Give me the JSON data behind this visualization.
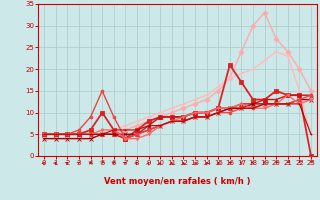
{
  "background_color": "#cce8e8",
  "grid_color": "#aacccc",
  "xlabel": "Vent moyen/en rafales ( km/h )",
  "xlabel_color": "#cc0000",
  "tick_color": "#cc0000",
  "arrow_color": "#cc0000",
  "xlim": [
    -0.5,
    23.5
  ],
  "ylim": [
    0,
    35
  ],
  "xticks": [
    0,
    1,
    2,
    3,
    4,
    5,
    6,
    7,
    8,
    9,
    10,
    11,
    12,
    13,
    14,
    15,
    16,
    17,
    18,
    19,
    20,
    21,
    22,
    23
  ],
  "yticks": [
    0,
    5,
    10,
    15,
    20,
    25,
    30,
    35
  ],
  "lines": [
    {
      "color": "#ffaaaa",
      "lw": 1.0,
      "marker": "D",
      "ms": 2.5,
      "x": [
        0,
        1,
        2,
        3,
        4,
        5,
        6,
        7,
        8,
        9,
        10,
        11,
        12,
        13,
        14,
        15,
        16,
        17,
        18,
        19,
        20,
        21,
        22,
        23
      ],
      "y": [
        5,
        5,
        5,
        5,
        5,
        5,
        5,
        6,
        7,
        8,
        9,
        10,
        11,
        12,
        13,
        15,
        18,
        24,
        30,
        33,
        27,
        24,
        20,
        15
      ]
    },
    {
      "color": "#ffbbbb",
      "lw": 1.0,
      "marker": "+",
      "ms": 3.5,
      "x": [
        0,
        1,
        2,
        3,
        4,
        5,
        6,
        7,
        8,
        9,
        10,
        11,
        12,
        13,
        14,
        15,
        16,
        17,
        18,
        19,
        20,
        21,
        22,
        23
      ],
      "y": [
        5,
        5,
        5,
        5,
        5,
        5,
        6,
        7,
        8,
        9,
        10,
        11,
        12,
        13,
        14,
        16,
        18,
        19,
        20,
        22,
        24,
        23,
        15,
        5
      ]
    },
    {
      "color": "#dd2222",
      "lw": 1.3,
      "marker": "s",
      "ms": 2.5,
      "x": [
        0,
        1,
        2,
        3,
        4,
        5,
        6,
        7,
        8,
        9,
        10,
        11,
        12,
        13,
        14,
        15,
        16,
        17,
        18,
        19,
        20,
        21,
        22,
        23
      ],
      "y": [
        5,
        5,
        5,
        5,
        6,
        10,
        6,
        4,
        6,
        8,
        9,
        9,
        9,
        10,
        10,
        11,
        21,
        17,
        13,
        13,
        15,
        14,
        14,
        0
      ]
    },
    {
      "color": "#cc1111",
      "lw": 1.0,
      "marker": "^",
      "ms": 2.5,
      "x": [
        0,
        1,
        2,
        3,
        4,
        5,
        6,
        7,
        8,
        9,
        10,
        11,
        12,
        13,
        14,
        15,
        16,
        17,
        18,
        19,
        20,
        21,
        22,
        23
      ],
      "y": [
        5,
        5,
        5,
        5,
        5,
        5,
        5,
        4,
        5,
        7,
        9,
        9,
        9,
        10,
        10,
        11,
        11,
        12,
        12,
        13,
        13,
        14,
        14,
        14
      ]
    },
    {
      "color": "#aa0000",
      "lw": 1.0,
      "marker": "x",
      "ms": 2.5,
      "x": [
        0,
        1,
        2,
        3,
        4,
        5,
        6,
        7,
        8,
        9,
        10,
        11,
        12,
        13,
        14,
        15,
        16,
        17,
        18,
        19,
        20,
        21,
        22,
        23
      ],
      "y": [
        4,
        4,
        4,
        4,
        4,
        5,
        5,
        5,
        5,
        6,
        7,
        8,
        8,
        9,
        9,
        10,
        11,
        11,
        12,
        12,
        12,
        12,
        13,
        13
      ]
    },
    {
      "color": "#ee4444",
      "lw": 1.0,
      "marker": "o",
      "ms": 2.0,
      "x": [
        0,
        1,
        2,
        3,
        4,
        5,
        6,
        7,
        8,
        9,
        10,
        11,
        12,
        13,
        14,
        15,
        16,
        17,
        18,
        19,
        20,
        21,
        22,
        23
      ],
      "y": [
        5,
        5,
        5,
        6,
        9,
        15,
        9,
        4,
        5,
        6,
        7,
        8,
        8,
        9,
        9,
        10,
        10,
        11,
        11,
        12,
        12,
        12,
        13,
        14
      ]
    },
    {
      "color": "#ff6666",
      "lw": 1.0,
      "marker": "v",
      "ms": 2.0,
      "x": [
        0,
        1,
        2,
        3,
        4,
        5,
        6,
        7,
        8,
        9,
        10,
        11,
        12,
        13,
        14,
        15,
        16,
        17,
        18,
        19,
        20,
        21,
        22,
        23
      ],
      "y": [
        5,
        5,
        5,
        5,
        5,
        6,
        6,
        4,
        4,
        5,
        7,
        8,
        9,
        10,
        10,
        11,
        11,
        12,
        11,
        11,
        12,
        14,
        12,
        13
      ]
    },
    {
      "color": "#bb0000",
      "lw": 0.8,
      "marker": ".",
      "ms": 1.5,
      "x": [
        0,
        1,
        2,
        3,
        4,
        5,
        6,
        7,
        8,
        9,
        10,
        11,
        12,
        13,
        14,
        15,
        16,
        17,
        18,
        19,
        20,
        21,
        22,
        23
      ],
      "y": [
        5,
        5,
        5,
        5,
        5,
        5,
        6,
        6,
        6,
        7,
        7,
        8,
        8,
        9,
        9,
        10,
        11,
        11,
        11,
        12,
        12,
        12,
        12,
        5
      ]
    }
  ],
  "wind_angles": [
    195,
    200,
    205,
    215,
    225,
    230,
    220,
    210,
    200,
    190,
    185,
    180,
    175,
    170,
    165,
    160,
    150,
    120,
    90,
    60,
    30,
    20,
    15,
    10
  ]
}
